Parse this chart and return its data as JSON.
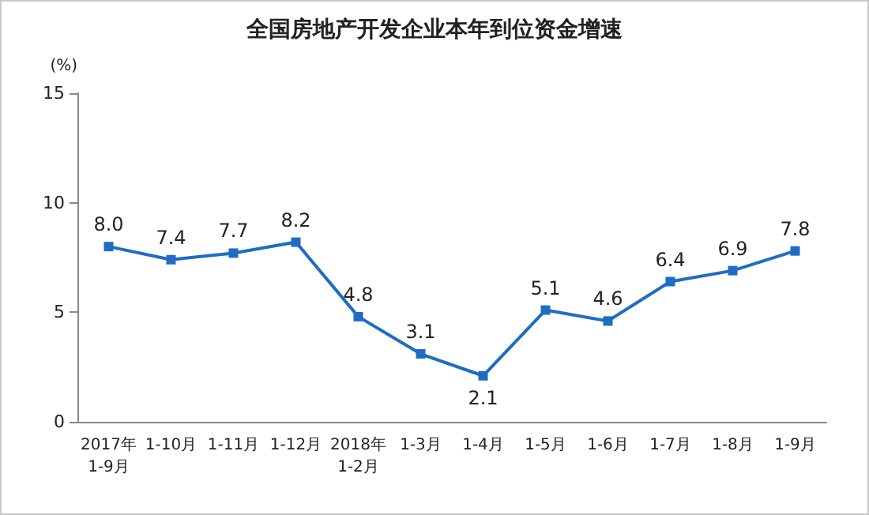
{
  "chart_data": {
    "type": "line",
    "title": "全国房地产开发企业本年到位资金增速",
    "ylabel": "(%)",
    "categories": [
      "2017年\n1-9月",
      "1-10月",
      "1-11月",
      "1-12月",
      "2018年\n1-2月",
      "1-3月",
      "1-4月",
      "1-5月",
      "1-6月",
      "1-7月",
      "1-8月",
      "1-9月"
    ],
    "series": [
      {
        "color": "#1f6cc4",
        "values": [
          8.0,
          7.4,
          7.7,
          8.2,
          4.8,
          3.1,
          2.1,
          5.1,
          4.6,
          6.4,
          6.9,
          7.8
        ],
        "value_labels": [
          "8.0",
          "7.4",
          "7.7",
          "8.2",
          "4.8",
          "3.1",
          "2.1",
          "5.1",
          "4.6",
          "6.4",
          "6.9",
          "7.8"
        ]
      }
    ],
    "ylim": [
      0,
      15
    ],
    "yticks": [
      0,
      5,
      10,
      15
    ],
    "grid": false,
    "marker": "square",
    "line_style": "solid"
  }
}
